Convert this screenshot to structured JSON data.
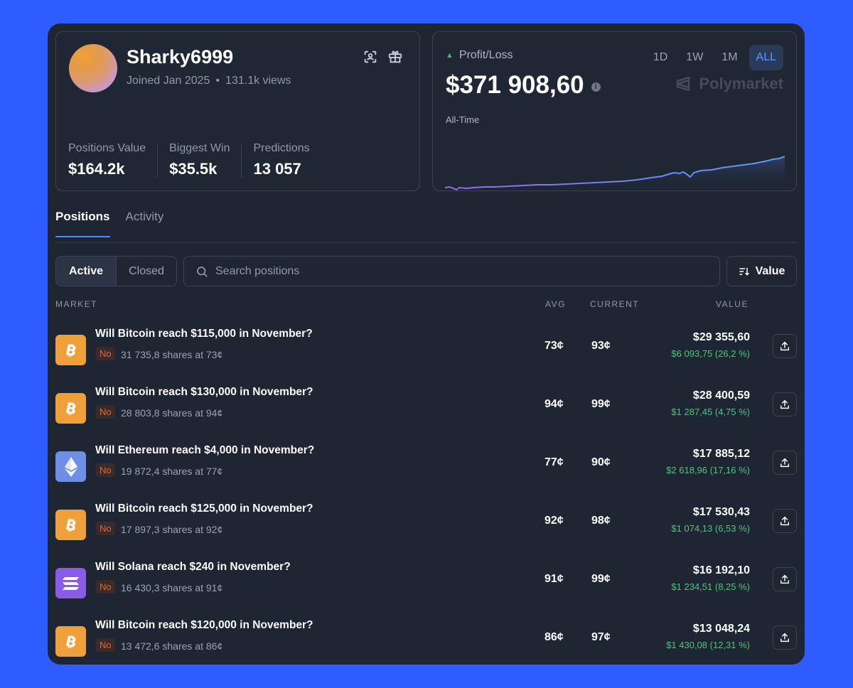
{
  "profile": {
    "username": "Sharky6999",
    "joined": "Joined Jan 2025",
    "views": "131.1k views",
    "stats": [
      {
        "label": "Positions Value",
        "value": "$164.2k"
      },
      {
        "label": "Biggest Win",
        "value": "$35.5k"
      },
      {
        "label": "Predictions",
        "value": "13 057"
      }
    ],
    "icons": [
      "scan-icon",
      "gift-icon"
    ]
  },
  "pnl": {
    "label": "Profit/Loss",
    "value": "$371 908,60",
    "period": "All-Time",
    "ranges": [
      "1D",
      "1W",
      "1M",
      "ALL"
    ],
    "active_range": "ALL",
    "brand": "Polymarket",
    "line_color": "#7b6fe6",
    "up_color": "#3dbb72"
  },
  "tabs": [
    {
      "label": "Positions",
      "active": true
    },
    {
      "label": "Activity",
      "active": false
    }
  ],
  "filters": {
    "toggle": [
      {
        "label": "Active",
        "active": true
      },
      {
        "label": "Closed",
        "active": false
      }
    ],
    "search_placeholder": "Search positions",
    "sort_label": "Value"
  },
  "table": {
    "headers": {
      "market": "MARKET",
      "avg": "AVG",
      "current": "CURRENT",
      "value": "VALUE"
    },
    "rows": [
      {
        "coin": "btc",
        "title": "Will Bitcoin reach $115,000 in November?",
        "side": "No",
        "shares": "31 735,8 shares at 73¢",
        "avg": "73¢",
        "current": "93¢",
        "value": "$29 355,60",
        "change": "$6 093,75 (26,2 %)"
      },
      {
        "coin": "btc",
        "title": "Will Bitcoin reach $130,000 in November?",
        "side": "No",
        "shares": "28 803,8 shares at 94¢",
        "avg": "94¢",
        "current": "99¢",
        "value": "$28 400,59",
        "change": "$1 287,45 (4,75 %)"
      },
      {
        "coin": "eth",
        "title": "Will Ethereum reach $4,000 in November?",
        "side": "No",
        "shares": "19 872,4 shares at 77¢",
        "avg": "77¢",
        "current": "90¢",
        "value": "$17 885,12",
        "change": "$2 618,96 (17,16 %)"
      },
      {
        "coin": "btc",
        "title": "Will Bitcoin reach $125,000 in November?",
        "side": "No",
        "shares": "17 897,3 shares at 92¢",
        "avg": "92¢",
        "current": "98¢",
        "value": "$17 530,43",
        "change": "$1 074,13 (6,53 %)"
      },
      {
        "coin": "sol",
        "title": "Will Solana reach $240 in November?",
        "side": "No",
        "shares": "16 430,3 shares at 91¢",
        "avg": "91¢",
        "current": "99¢",
        "value": "$16 192,10",
        "change": "$1 234,51 (8,25 %)"
      },
      {
        "coin": "btc",
        "title": "Will Bitcoin reach $120,000 in November?",
        "side": "No",
        "shares": "13 472,6 shares at 86¢",
        "avg": "86¢",
        "current": "97¢",
        "value": "$13 048,24",
        "change": "$1 430,08 (12,31 %)"
      }
    ]
  }
}
